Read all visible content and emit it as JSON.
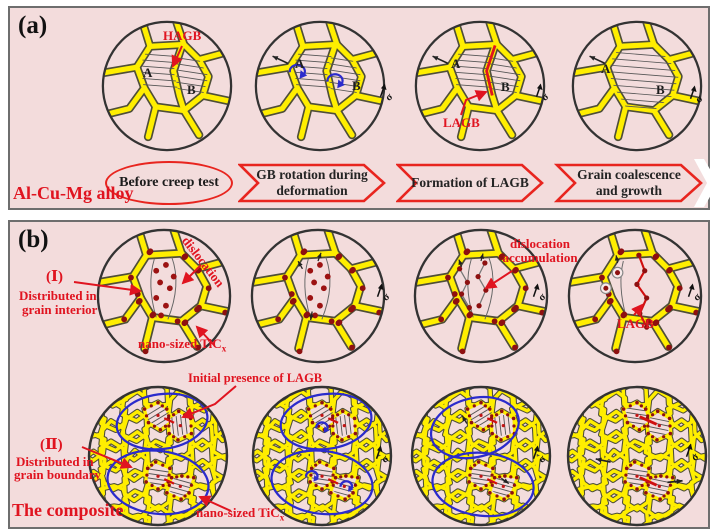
{
  "colors": {
    "panel_bg": "#f3dcdc",
    "boundary_yellow": "#ffee00",
    "outline_dark": "#4f4f38",
    "annotation_red": "#e01420",
    "ticx_dot": "#8e1010",
    "rotation_blue": "#2b2bcc",
    "circle_outline": "#333333"
  },
  "panel_a": {
    "tag": "(a)",
    "material_label": "Al-Cu-Mg alloy",
    "grain_a": "A",
    "grain_b": "B",
    "hagb_label": "HAGB",
    "lagb_label": "LAGB",
    "sigma": "σ",
    "flow": {
      "stage0": "Before creep test",
      "stage1_line1": "GB  rotation during",
      "stage1_line2": "deformation",
      "stage2_line1": "Formation of LAGB",
      "stage3_line1": "Grain coalescence",
      "stage3_line2": "and growth"
    }
  },
  "panel_b": {
    "tag": "(b)",
    "material_label": "The composite",
    "sigma": "σ",
    "row1": {
      "numeral": "(Ⅰ)",
      "desc_line1": "Distributed in",
      "desc_line2": "grain interior",
      "dislocation_label": "dislocation",
      "nano_label": "nano-sized TiC",
      "nano_sub": "x",
      "accumulation_line1": "dislocation",
      "accumulation_line2": "accumulation",
      "lagb_label": "LAGB"
    },
    "row2": {
      "numeral": "(Ⅱ)",
      "desc_line1": "Distributed in",
      "desc_line2": "grain boundary",
      "initial_lagb_label": "Initial presence of LAGB",
      "nano_label": "nano-sized TiC",
      "nano_sub": "x"
    }
  }
}
